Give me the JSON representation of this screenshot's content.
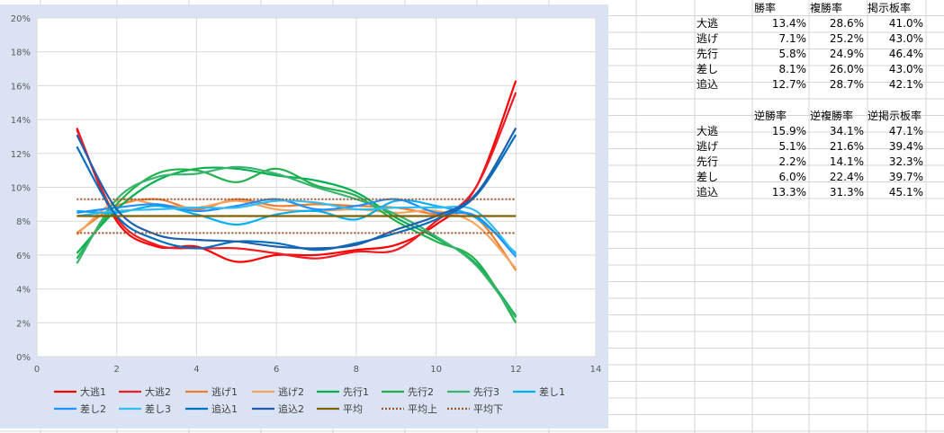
{
  "colors": {
    "chart_bg": "#dae3f3",
    "plot_bg": "#ffffff",
    "gridline": "#d9d9d9",
    "sheet_grid": "#d4d4d4"
  },
  "table1": {
    "headers": [
      "勝率",
      "複勝率",
      "掲示板率"
    ],
    "rows": [
      {
        "label": "大逃",
        "values": [
          "13.4%",
          "28.6%",
          "41.0%"
        ]
      },
      {
        "label": "逃げ",
        "values": [
          "7.1%",
          "25.2%",
          "43.0%"
        ]
      },
      {
        "label": "先行",
        "values": [
          "5.8%",
          "24.9%",
          "46.4%"
        ]
      },
      {
        "label": "差し",
        "values": [
          "8.1%",
          "26.0%",
          "43.0%"
        ]
      },
      {
        "label": "追込",
        "values": [
          "12.7%",
          "28.7%",
          "42.1%"
        ]
      }
    ]
  },
  "table2": {
    "headers": [
      "逆勝率",
      "逆複勝率",
      "逆掲示板率"
    ],
    "rows": [
      {
        "label": "大逃",
        "values": [
          "15.9%",
          "34.1%",
          "47.1%"
        ]
      },
      {
        "label": "逃げ",
        "values": [
          "5.1%",
          "21.6%",
          "39.4%"
        ]
      },
      {
        "label": "先行",
        "values": [
          "2.2%",
          "14.1%",
          "32.3%"
        ]
      },
      {
        "label": "差し",
        "values": [
          "6.0%",
          "22.4%",
          "39.7%"
        ]
      },
      {
        "label": "追込",
        "values": [
          "13.3%",
          "31.3%",
          "45.1%"
        ]
      }
    ]
  },
  "chart_data": {
    "type": "line",
    "title": "",
    "xlabel": "",
    "ylabel": "",
    "xlim": [
      0,
      14
    ],
    "ylim": [
      0,
      0.2
    ],
    "x_ticks": [
      "0",
      "2",
      "4",
      "6",
      "8",
      "10",
      "12",
      "14"
    ],
    "y_ticks": [
      "0%",
      "2%",
      "4%",
      "6%",
      "8%",
      "10%",
      "12%",
      "14%",
      "16%",
      "18%",
      "20%"
    ],
    "grid": true,
    "legend_position": "bottom",
    "x": [
      1,
      2,
      3,
      4,
      5,
      6,
      7,
      8,
      9,
      10,
      11,
      12
    ],
    "series": [
      {
        "name": "大逃1",
        "color": "#ff0000",
        "style": "solid",
        "values": [
          0.135,
          0.08,
          0.065,
          0.065,
          0.056,
          0.06,
          0.06,
          0.063,
          0.066,
          0.078,
          0.1,
          0.163
        ]
      },
      {
        "name": "大逃2",
        "color": "#ee1c24",
        "style": "solid",
        "values": [
          0.134,
          0.082,
          0.066,
          0.064,
          0.064,
          0.061,
          0.058,
          0.062,
          0.063,
          0.08,
          0.1,
          0.156
        ]
      },
      {
        "name": "逃げ1",
        "color": "#ed7d31",
        "style": "solid",
        "values": [
          0.073,
          0.089,
          0.093,
          0.087,
          0.093,
          0.089,
          0.09,
          0.089,
          0.088,
          0.084,
          0.082,
          0.051
        ]
      },
      {
        "name": "逃げ2",
        "color": "#f4a460",
        "style": "solid",
        "values": [
          0.072,
          0.092,
          0.09,
          0.088,
          0.092,
          0.087,
          0.086,
          0.087,
          0.085,
          0.086,
          0.078,
          0.052
        ]
      },
      {
        "name": "先行1",
        "color": "#00b050",
        "style": "solid",
        "values": [
          0.061,
          0.087,
          0.104,
          0.111,
          0.111,
          0.107,
          0.104,
          0.097,
          0.082,
          0.07,
          0.055,
          0.024
        ]
      },
      {
        "name": "先行2",
        "color": "#22b14c",
        "style": "solid",
        "values": [
          0.058,
          0.09,
          0.108,
          0.11,
          0.103,
          0.111,
          0.101,
          0.095,
          0.08,
          0.068,
          0.057,
          0.02
        ]
      },
      {
        "name": "先行3",
        "color": "#3cb371",
        "style": "solid",
        "values": [
          0.055,
          0.093,
          0.106,
          0.108,
          0.112,
          0.108,
          0.1,
          0.093,
          0.084,
          0.071,
          0.054,
          0.023
        ]
      },
      {
        "name": "差し1",
        "color": "#00b0f0",
        "style": "solid",
        "values": [
          0.086,
          0.085,
          0.089,
          0.084,
          0.078,
          0.084,
          0.086,
          0.081,
          0.092,
          0.089,
          0.082,
          0.061
        ]
      },
      {
        "name": "差し2",
        "color": "#1e90ff",
        "style": "solid",
        "values": [
          0.085,
          0.088,
          0.09,
          0.086,
          0.089,
          0.093,
          0.087,
          0.089,
          0.093,
          0.085,
          0.083,
          0.059
        ]
      },
      {
        "name": "差し3",
        "color": "#33bbee",
        "style": "solid",
        "values": [
          0.083,
          0.086,
          0.087,
          0.088,
          0.088,
          0.092,
          0.091,
          0.087,
          0.088,
          0.088,
          0.086,
          0.06
        ]
      },
      {
        "name": "追込1",
        "color": "#0070c0",
        "style": "solid",
        "values": [
          0.124,
          0.083,
          0.069,
          0.064,
          0.068,
          0.067,
          0.063,
          0.067,
          0.073,
          0.081,
          0.095,
          0.131
        ]
      },
      {
        "name": "追込2",
        "color": "#1f5fae",
        "style": "solid",
        "values": [
          0.131,
          0.087,
          0.072,
          0.069,
          0.068,
          0.065,
          0.064,
          0.066,
          0.075,
          0.083,
          0.096,
          0.135
        ]
      },
      {
        "name": "平均",
        "color": "#806000",
        "style": "solid",
        "values": [
          0.083,
          0.083,
          0.083,
          0.083,
          0.083,
          0.083,
          0.083,
          0.083,
          0.083,
          0.083,
          0.083,
          0.083
        ]
      },
      {
        "name": "平均上",
        "color": "#a0522d",
        "style": "dotted",
        "values": [
          0.093,
          0.093,
          0.093,
          0.093,
          0.093,
          0.093,
          0.093,
          0.093,
          0.093,
          0.093,
          0.093,
          0.093
        ]
      },
      {
        "name": "平均下",
        "color": "#a0522d",
        "style": "dotted",
        "values": [
          0.073,
          0.073,
          0.073,
          0.073,
          0.073,
          0.073,
          0.073,
          0.073,
          0.073,
          0.073,
          0.073,
          0.073
        ]
      }
    ]
  }
}
